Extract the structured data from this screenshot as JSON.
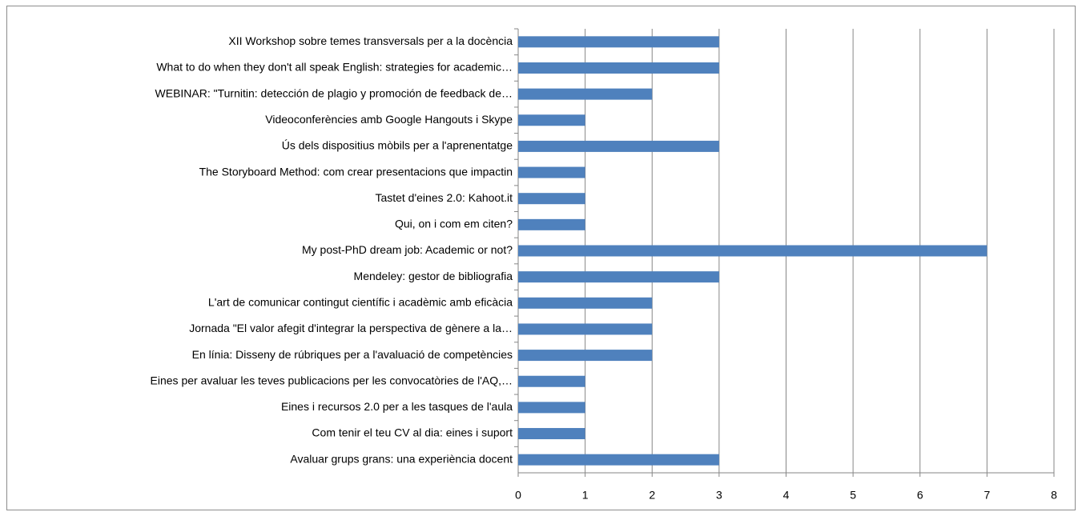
{
  "chart_data": {
    "type": "bar",
    "orientation": "horizontal",
    "categories": [
      "XII Workshop sobre temes transversals per a la docència",
      "What to do when they don't all speak English: strategies for academic…",
      "WEBINAR: \"Turnitin: detección de plagio y promoción de feedback de…",
      "Videoconferències amb Google Hangouts i Skype",
      "Ús dels dispositius mòbils per a l'aprenentatge",
      "The Storyboard Method: com crear presentacions que impactin",
      "Tastet d'eines 2.0: Kahoot.it",
      "Qui, on i com em citen?",
      "My post-PhD dream job: Academic or not?",
      "Mendeley: gestor de bibliografia",
      "L'art de comunicar contingut científic i acadèmic amb eficàcia",
      "Jornada \"El valor afegit d'integrar la perspectiva de gènere a la…",
      "En línia: Disseny de rúbriques per a l'avaluació de competències",
      "Eines per avaluar les teves publicacions per les convocatòries de l'AQ,…",
      "Eines i recursos 2.0 per a les tasques de l'aula",
      "Com tenir el teu CV al dia: eines i suport",
      "Avaluar grups grans: una experiència docent"
    ],
    "values": [
      3,
      3,
      2,
      1,
      3,
      1,
      1,
      1,
      7,
      3,
      2,
      2,
      2,
      1,
      1,
      1,
      3
    ],
    "color": "#4f81bd",
    "xlim": [
      0,
      8
    ],
    "xticks": [
      0,
      1,
      2,
      3,
      4,
      5,
      6,
      7,
      8
    ],
    "grid": true
  }
}
